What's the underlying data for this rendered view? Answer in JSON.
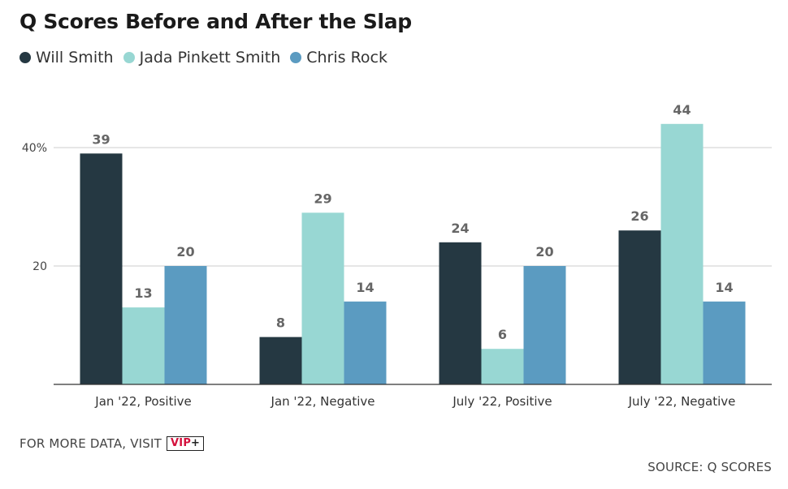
{
  "title": "Q Scores Before and After the Slap",
  "footer": {
    "more_data": "FOR MORE DATA, VISIT",
    "vip_label": "VIP",
    "vip_plus": "+",
    "source": "SOURCE: Q SCORES"
  },
  "chart_data": {
    "type": "bar",
    "title": "Q Scores Before and After the Slap",
    "xlabel": "",
    "ylabel": "",
    "categories": [
      "Jan '22, Positive",
      "Jan '22, Negative",
      "July '22, Positive",
      "July '22, Negative"
    ],
    "series": [
      {
        "name": "Will Smith",
        "color": "#253842",
        "values": [
          39,
          8,
          24,
          26
        ]
      },
      {
        "name": "Jada Pinkett Smith",
        "color": "#98d7d3",
        "values": [
          13,
          29,
          6,
          44
        ]
      },
      {
        "name": "Chris Rock",
        "color": "#5b9bc1",
        "values": [
          20,
          14,
          20,
          14
        ]
      }
    ],
    "yticks": [
      {
        "value": 20,
        "label": "20"
      },
      {
        "value": 40,
        "label": "40%"
      }
    ],
    "ylim": [
      0,
      50
    ],
    "grid": true,
    "legend_position": "top-left",
    "data_labels": true
  }
}
